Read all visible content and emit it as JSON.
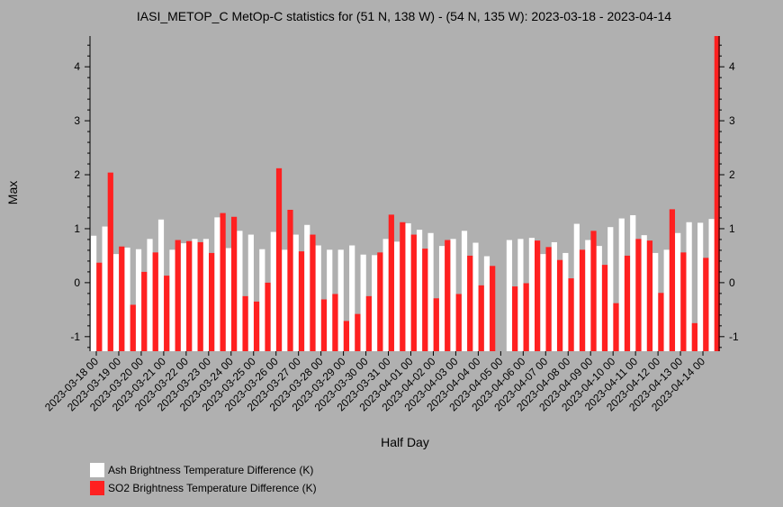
{
  "chart_data": {
    "type": "bar",
    "title": "IASI_METOP_C MetOp-C statistics for (51 N, 138 W) - (54 N, 135 W): 2023-03-18 - 2023-04-14",
    "xlabel": "Half Day",
    "ylabel": "Max",
    "ylim": [
      -1.27,
      4.57
    ],
    "yticks": [
      -1,
      0,
      1,
      2,
      3,
      4
    ],
    "grid": false,
    "legend_position": "bottom-left",
    "categories": [
      "2023-03-18 00",
      "2023-03-18 12",
      "2023-03-19 00",
      "2023-03-19 12",
      "2023-03-20 00",
      "2023-03-20 12",
      "2023-03-21 00",
      "2023-03-21 12",
      "2023-03-22 00",
      "2023-03-22 12",
      "2023-03-23 00",
      "2023-03-23 12",
      "2023-03-24 00",
      "2023-03-24 12",
      "2023-03-25 00",
      "2023-03-25 12",
      "2023-03-26 00",
      "2023-03-26 12",
      "2023-03-27 00",
      "2023-03-27 12",
      "2023-03-28 00",
      "2023-03-28 12",
      "2023-03-29 00",
      "2023-03-29 12",
      "2023-03-30 00",
      "2023-03-30 12",
      "2023-03-31 00",
      "2023-03-31 12",
      "2023-04-01 00",
      "2023-04-01 12",
      "2023-04-02 00",
      "2023-04-02 12",
      "2023-04-03 00",
      "2023-04-03 12",
      "2023-04-04 00",
      "2023-04-04 12",
      "2023-04-05 00",
      "2023-04-05 12",
      "2023-04-06 00",
      "2023-04-06 12",
      "2023-04-07 00",
      "2023-04-07 12",
      "2023-04-08 00",
      "2023-04-08 12",
      "2023-04-09 00",
      "2023-04-09 12",
      "2023-04-10 00",
      "2023-04-10 12",
      "2023-04-11 00",
      "2023-04-11 12",
      "2023-04-12 00",
      "2023-04-12 12",
      "2023-04-13 00",
      "2023-04-13 12",
      "2023-04-14 00",
      "2023-04-14 12"
    ],
    "tick_labels": [
      "2023-03-18 00",
      "2023-03-19 00",
      "2023-03-20 00",
      "2023-03-21 00",
      "2023-03-22 00",
      "2023-03-23 00",
      "2023-03-24 00",
      "2023-03-25 00",
      "2023-03-26 00",
      "2023-03-27 00",
      "2023-03-28 00",
      "2023-03-29 00",
      "2023-03-30 00",
      "2023-03-31 00",
      "2023-04-01 00",
      "2023-04-02 00",
      "2023-04-03 00",
      "2023-04-04 00",
      "2023-04-05 00",
      "2023-04-06 00",
      "2023-04-07 00",
      "2023-04-08 00",
      "2023-04-09 00",
      "2023-04-10 00",
      "2023-04-11 00",
      "2023-04-12 00",
      "2023-04-13 00",
      "2023-04-14 00"
    ],
    "series": [
      {
        "name": "Ash Brightness Temperature Difference (K)",
        "color": "#ffffff",
        "values": [
          0.87,
          1.04,
          0.53,
          0.65,
          0.62,
          0.81,
          1.17,
          0.61,
          0.73,
          0.81,
          0.81,
          1.21,
          0.64,
          0.96,
          0.89,
          0.62,
          0.94,
          0.61,
          0.89,
          1.07,
          0.69,
          0.61,
          0.61,
          0.69,
          0.52,
          0.51,
          0.81,
          0.76,
          1.1,
          0.98,
          0.92,
          0.68,
          0.81,
          0.96,
          0.74,
          0.49,
          null,
          0.79,
          0.81,
          0.83,
          0.53,
          0.75,
          0.55,
          1.09,
          0.79,
          0.68,
          1.03,
          1.19,
          1.25,
          0.88,
          0.55,
          0.61,
          0.92,
          1.12,
          1.11,
          1.18
        ]
      },
      {
        "name": "SO2 Brightness Temperature Difference (K)",
        "color": "#ff2020",
        "values": [
          0.37,
          2.04,
          0.67,
          -0.41,
          0.2,
          0.56,
          0.13,
          0.79,
          0.77,
          0.75,
          0.55,
          1.29,
          1.22,
          -0.25,
          -0.35,
          0.0,
          2.12,
          1.35,
          0.58,
          0.89,
          -0.31,
          -0.21,
          -0.71,
          -0.58,
          -0.25,
          0.56,
          1.26,
          1.12,
          0.89,
          0.63,
          -0.29,
          0.79,
          -0.21,
          0.5,
          -0.05,
          0.31,
          null,
          -0.07,
          -0.01,
          0.78,
          0.66,
          0.42,
          0.08,
          0.61,
          0.96,
          0.33,
          -0.38,
          0.5,
          0.81,
          0.78,
          -0.19,
          1.36,
          0.56,
          -0.75,
          0.46,
          4.57
        ]
      }
    ]
  }
}
